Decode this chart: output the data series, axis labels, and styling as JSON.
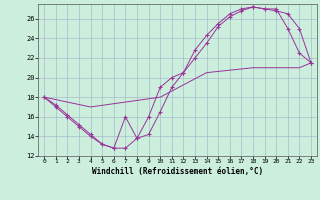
{
  "xlabel": "Windchill (Refroidissement éolien,°C)",
  "bg_color": "#cceedd",
  "grid_color": "#aabbcc",
  "line_color": "#993399",
  "xlim": [
    -0.5,
    23.5
  ],
  "ylim": [
    12,
    27.5
  ],
  "xticks": [
    0,
    1,
    2,
    3,
    4,
    5,
    6,
    7,
    8,
    9,
    10,
    11,
    12,
    13,
    14,
    15,
    16,
    17,
    18,
    19,
    20,
    21,
    22,
    23
  ],
  "yticks": [
    12,
    14,
    16,
    18,
    20,
    22,
    24,
    26
  ],
  "series1_x": [
    0,
    1,
    2,
    3,
    4,
    5,
    6,
    7,
    8,
    9,
    10,
    11,
    12,
    13,
    14,
    15,
    16,
    17,
    18,
    19,
    20,
    21,
    22,
    23
  ],
  "series1_y": [
    18,
    17,
    16,
    15,
    14,
    13.2,
    12.8,
    16,
    13.8,
    16,
    19,
    20,
    20.5,
    22,
    23.5,
    25.2,
    26.2,
    26.8,
    27.2,
    27,
    26.8,
    26.5,
    25,
    21.5
  ],
  "series2_x": [
    0,
    1,
    2,
    3,
    4,
    5,
    6,
    7,
    8,
    9,
    10,
    11,
    12,
    13,
    14,
    15,
    16,
    17,
    18,
    19,
    20,
    21,
    22,
    23
  ],
  "series2_y": [
    18,
    17.2,
    16.2,
    15.2,
    14.2,
    13.2,
    12.8,
    12.8,
    13.8,
    14.2,
    16.5,
    19,
    20.5,
    22.8,
    24.3,
    25.5,
    26.5,
    27,
    27.2,
    27,
    27,
    25,
    22.5,
    21.5
  ],
  "series3_x": [
    0,
    4,
    10,
    14,
    18,
    20,
    21,
    22,
    23
  ],
  "series3_y": [
    18,
    17,
    18,
    20.5,
    21,
    21,
    21,
    21,
    21.5
  ]
}
